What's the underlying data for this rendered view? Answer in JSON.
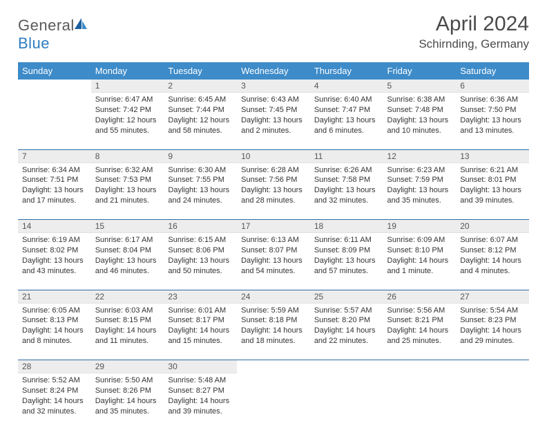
{
  "brand": {
    "name_part1": "General",
    "name_part2": "Blue"
  },
  "title": "April 2024",
  "location": "Schirnding, Germany",
  "colors": {
    "header_bg": "#3d8bc9",
    "header_text": "#ffffff",
    "daynum_bg": "#ededed",
    "daynum_text": "#555555",
    "border": "#2f6aa5",
    "body_text": "#333333",
    "brand_gray": "#5a5a5a",
    "brand_blue": "#2d7cc0",
    "page_bg": "#ffffff"
  },
  "day_headers": [
    "Sunday",
    "Monday",
    "Tuesday",
    "Wednesday",
    "Thursday",
    "Friday",
    "Saturday"
  ],
  "weeks": [
    [
      {
        "n": "",
        "sunrise": "",
        "sunset": "",
        "daylight": ""
      },
      {
        "n": "1",
        "sunrise": "Sunrise: 6:47 AM",
        "sunset": "Sunset: 7:42 PM",
        "daylight": "Daylight: 12 hours and 55 minutes."
      },
      {
        "n": "2",
        "sunrise": "Sunrise: 6:45 AM",
        "sunset": "Sunset: 7:44 PM",
        "daylight": "Daylight: 12 hours and 58 minutes."
      },
      {
        "n": "3",
        "sunrise": "Sunrise: 6:43 AM",
        "sunset": "Sunset: 7:45 PM",
        "daylight": "Daylight: 13 hours and 2 minutes."
      },
      {
        "n": "4",
        "sunrise": "Sunrise: 6:40 AM",
        "sunset": "Sunset: 7:47 PM",
        "daylight": "Daylight: 13 hours and 6 minutes."
      },
      {
        "n": "5",
        "sunrise": "Sunrise: 6:38 AM",
        "sunset": "Sunset: 7:48 PM",
        "daylight": "Daylight: 13 hours and 10 minutes."
      },
      {
        "n": "6",
        "sunrise": "Sunrise: 6:36 AM",
        "sunset": "Sunset: 7:50 PM",
        "daylight": "Daylight: 13 hours and 13 minutes."
      }
    ],
    [
      {
        "n": "7",
        "sunrise": "Sunrise: 6:34 AM",
        "sunset": "Sunset: 7:51 PM",
        "daylight": "Daylight: 13 hours and 17 minutes."
      },
      {
        "n": "8",
        "sunrise": "Sunrise: 6:32 AM",
        "sunset": "Sunset: 7:53 PM",
        "daylight": "Daylight: 13 hours and 21 minutes."
      },
      {
        "n": "9",
        "sunrise": "Sunrise: 6:30 AM",
        "sunset": "Sunset: 7:55 PM",
        "daylight": "Daylight: 13 hours and 24 minutes."
      },
      {
        "n": "10",
        "sunrise": "Sunrise: 6:28 AM",
        "sunset": "Sunset: 7:56 PM",
        "daylight": "Daylight: 13 hours and 28 minutes."
      },
      {
        "n": "11",
        "sunrise": "Sunrise: 6:26 AM",
        "sunset": "Sunset: 7:58 PM",
        "daylight": "Daylight: 13 hours and 32 minutes."
      },
      {
        "n": "12",
        "sunrise": "Sunrise: 6:23 AM",
        "sunset": "Sunset: 7:59 PM",
        "daylight": "Daylight: 13 hours and 35 minutes."
      },
      {
        "n": "13",
        "sunrise": "Sunrise: 6:21 AM",
        "sunset": "Sunset: 8:01 PM",
        "daylight": "Daylight: 13 hours and 39 minutes."
      }
    ],
    [
      {
        "n": "14",
        "sunrise": "Sunrise: 6:19 AM",
        "sunset": "Sunset: 8:02 PM",
        "daylight": "Daylight: 13 hours and 43 minutes."
      },
      {
        "n": "15",
        "sunrise": "Sunrise: 6:17 AM",
        "sunset": "Sunset: 8:04 PM",
        "daylight": "Daylight: 13 hours and 46 minutes."
      },
      {
        "n": "16",
        "sunrise": "Sunrise: 6:15 AM",
        "sunset": "Sunset: 8:06 PM",
        "daylight": "Daylight: 13 hours and 50 minutes."
      },
      {
        "n": "17",
        "sunrise": "Sunrise: 6:13 AM",
        "sunset": "Sunset: 8:07 PM",
        "daylight": "Daylight: 13 hours and 54 minutes."
      },
      {
        "n": "18",
        "sunrise": "Sunrise: 6:11 AM",
        "sunset": "Sunset: 8:09 PM",
        "daylight": "Daylight: 13 hours and 57 minutes."
      },
      {
        "n": "19",
        "sunrise": "Sunrise: 6:09 AM",
        "sunset": "Sunset: 8:10 PM",
        "daylight": "Daylight: 14 hours and 1 minute."
      },
      {
        "n": "20",
        "sunrise": "Sunrise: 6:07 AM",
        "sunset": "Sunset: 8:12 PM",
        "daylight": "Daylight: 14 hours and 4 minutes."
      }
    ],
    [
      {
        "n": "21",
        "sunrise": "Sunrise: 6:05 AM",
        "sunset": "Sunset: 8:13 PM",
        "daylight": "Daylight: 14 hours and 8 minutes."
      },
      {
        "n": "22",
        "sunrise": "Sunrise: 6:03 AM",
        "sunset": "Sunset: 8:15 PM",
        "daylight": "Daylight: 14 hours and 11 minutes."
      },
      {
        "n": "23",
        "sunrise": "Sunrise: 6:01 AM",
        "sunset": "Sunset: 8:17 PM",
        "daylight": "Daylight: 14 hours and 15 minutes."
      },
      {
        "n": "24",
        "sunrise": "Sunrise: 5:59 AM",
        "sunset": "Sunset: 8:18 PM",
        "daylight": "Daylight: 14 hours and 18 minutes."
      },
      {
        "n": "25",
        "sunrise": "Sunrise: 5:57 AM",
        "sunset": "Sunset: 8:20 PM",
        "daylight": "Daylight: 14 hours and 22 minutes."
      },
      {
        "n": "26",
        "sunrise": "Sunrise: 5:56 AM",
        "sunset": "Sunset: 8:21 PM",
        "daylight": "Daylight: 14 hours and 25 minutes."
      },
      {
        "n": "27",
        "sunrise": "Sunrise: 5:54 AM",
        "sunset": "Sunset: 8:23 PM",
        "daylight": "Daylight: 14 hours and 29 minutes."
      }
    ],
    [
      {
        "n": "28",
        "sunrise": "Sunrise: 5:52 AM",
        "sunset": "Sunset: 8:24 PM",
        "daylight": "Daylight: 14 hours and 32 minutes."
      },
      {
        "n": "29",
        "sunrise": "Sunrise: 5:50 AM",
        "sunset": "Sunset: 8:26 PM",
        "daylight": "Daylight: 14 hours and 35 minutes."
      },
      {
        "n": "30",
        "sunrise": "Sunrise: 5:48 AM",
        "sunset": "Sunset: 8:27 PM",
        "daylight": "Daylight: 14 hours and 39 minutes."
      },
      {
        "n": "",
        "sunrise": "",
        "sunset": "",
        "daylight": ""
      },
      {
        "n": "",
        "sunrise": "",
        "sunset": "",
        "daylight": ""
      },
      {
        "n": "",
        "sunrise": "",
        "sunset": "",
        "daylight": ""
      },
      {
        "n": "",
        "sunrise": "",
        "sunset": "",
        "daylight": ""
      }
    ]
  ]
}
